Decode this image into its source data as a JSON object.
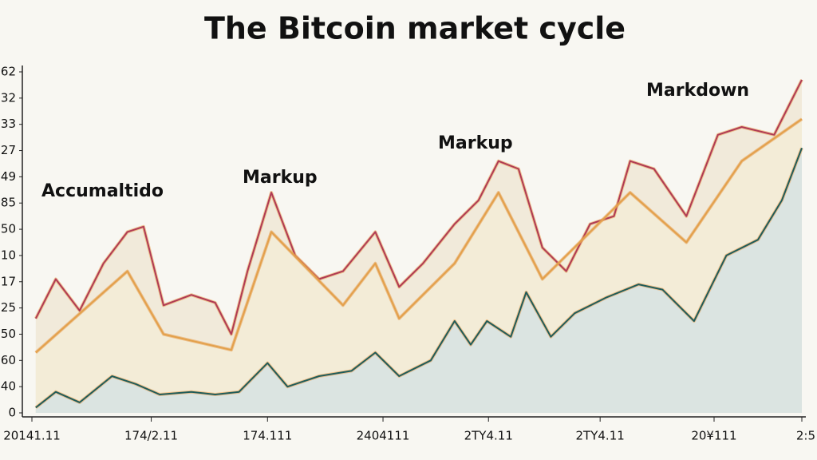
{
  "chart_data": {
    "type": "line",
    "title": "The Bitcoin market cycle",
    "annotations": [
      "Accumaltido",
      "Markup",
      "Markup",
      "Markdown"
    ],
    "xlim": [
      0,
      100
    ],
    "ylim": [
      0,
      13
    ],
    "xticks": [
      {
        "value": 0,
        "label": "20141.11"
      },
      {
        "value": 15.5,
        "label": "174/2.11"
      },
      {
        "value": 30.6,
        "label": "174.111"
      },
      {
        "value": 45.6,
        "label": "2404111"
      },
      {
        "value": 59.3,
        "label": "2TY4.11"
      },
      {
        "value": 73.8,
        "label": "2TY4.11"
      },
      {
        "value": 88.6,
        "label": "20¥111"
      },
      {
        "value": 100,
        "label": "2:5"
      }
    ],
    "yticks": [
      {
        "value": 0,
        "label": "0"
      },
      {
        "value": 1,
        "label": "40"
      },
      {
        "value": 2,
        "label": "60"
      },
      {
        "value": 3,
        "label": "50"
      },
      {
        "value": 4,
        "label": "25"
      },
      {
        "value": 5,
        "label": "17"
      },
      {
        "value": 6,
        "label": "10"
      },
      {
        "value": 7,
        "label": "50"
      },
      {
        "value": 8,
        "label": "85"
      },
      {
        "value": 9,
        "label": "49"
      },
      {
        "value": 10,
        "label": "27"
      },
      {
        "value": 11,
        "label": "33"
      },
      {
        "value": 12,
        "label": "32"
      },
      {
        "value": 13,
        "label": "62"
      }
    ],
    "series": [
      {
        "color": "#b03a55",
        "fill": "#efe6d2",
        "x": [
          0.5,
          3.1,
          6.2,
          9.3,
          12.4,
          14.5,
          17.1,
          20.7,
          23.8,
          25.9,
          28.0,
          31.1,
          34.2,
          37.3,
          40.4,
          44.6,
          47.7,
          50.8,
          54.9,
          58.0,
          60.6,
          63.2,
          66.3,
          69.4,
          72.5,
          75.6,
          77.7,
          80.8,
          85.0,
          89.1,
          92.2,
          96.4,
          100
        ],
        "values": [
          3.6,
          5.1,
          3.9,
          5.7,
          6.9,
          7.1,
          4.1,
          4.5,
          4.2,
          3.0,
          5.4,
          8.4,
          6.0,
          5.1,
          5.4,
          6.9,
          4.8,
          5.7,
          7.2,
          8.1,
          9.6,
          9.3,
          6.3,
          5.4,
          7.2,
          7.5,
          9.6,
          9.3,
          7.5,
          10.6,
          10.9,
          10.6,
          12.7
        ]
      },
      {
        "color": "#e3a04a",
        "fill": "#f3ecd6",
        "x": [
          0.5,
          12.4,
          17.1,
          25.9,
          31.1,
          40.4,
          44.6,
          47.7,
          54.9,
          60.6,
          66.3,
          77.7,
          85.0,
          92.2,
          100
        ],
        "values": [
          2.3,
          5.4,
          3.0,
          2.4,
          6.9,
          4.1,
          5.7,
          3.6,
          5.7,
          8.4,
          5.1,
          8.4,
          6.5,
          9.6,
          11.2
        ]
      },
      {
        "color": "#1f5c5a",
        "fill": "#d3e2e4",
        "x": [
          0.5,
          3.1,
          6.2,
          10.4,
          13.5,
          16.6,
          20.7,
          23.8,
          26.9,
          30.6,
          33.2,
          37.3,
          41.5,
          44.6,
          47.7,
          51.8,
          54.9,
          57.0,
          59.1,
          62.2,
          64.2,
          67.4,
          70.5,
          74.6,
          78.8,
          81.9,
          86.0,
          90.2,
          94.3,
          97.4,
          100
        ],
        "values": [
          0.2,
          0.8,
          0.4,
          1.4,
          1.1,
          0.7,
          0.8,
          0.7,
          0.8,
          1.9,
          1.0,
          1.4,
          1.6,
          2.3,
          1.4,
          2.0,
          3.5,
          2.6,
          3.5,
          2.9,
          4.6,
          2.9,
          3.8,
          4.4,
          4.9,
          4.7,
          3.5,
          6.0,
          6.6,
          8.1,
          10.1
        ]
      }
    ]
  }
}
